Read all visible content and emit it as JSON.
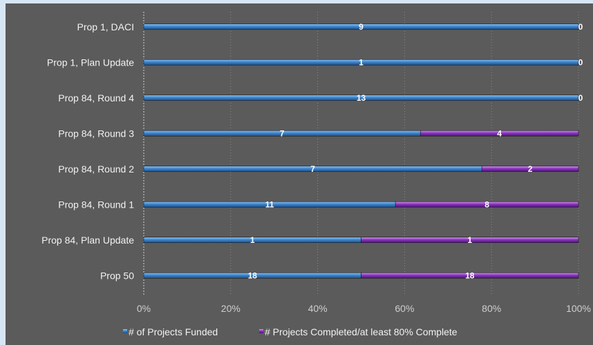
{
  "chart_data": {
    "type": "bar",
    "orientation": "horizontal",
    "stacked": "percent",
    "categories": [
      "Prop 1, DACI",
      "Prop 1, Plan Update",
      "Prop 84, Round 4",
      "Prop 84, Round 3",
      "Prop 84, Round 2",
      "Prop 84, Round 1",
      "Prop 84, Plan Update",
      "Prop 50"
    ],
    "series": [
      {
        "name": "# of Projects Funded",
        "values": [
          9,
          1,
          13,
          7,
          7,
          11,
          1,
          18
        ],
        "color": "#3f86cf"
      },
      {
        "name": "# Projects Completed/at least 80% Complete",
        "values": [
          0,
          0,
          0,
          4,
          2,
          8,
          1,
          18
        ],
        "color": "#8a35c2"
      }
    ],
    "xaxis": {
      "ticks": [
        "0%",
        "20%",
        "40%",
        "60%",
        "80%",
        "100%"
      ],
      "range": [
        0,
        100
      ]
    },
    "grid": "vertical dotted",
    "legend": "bottom"
  }
}
